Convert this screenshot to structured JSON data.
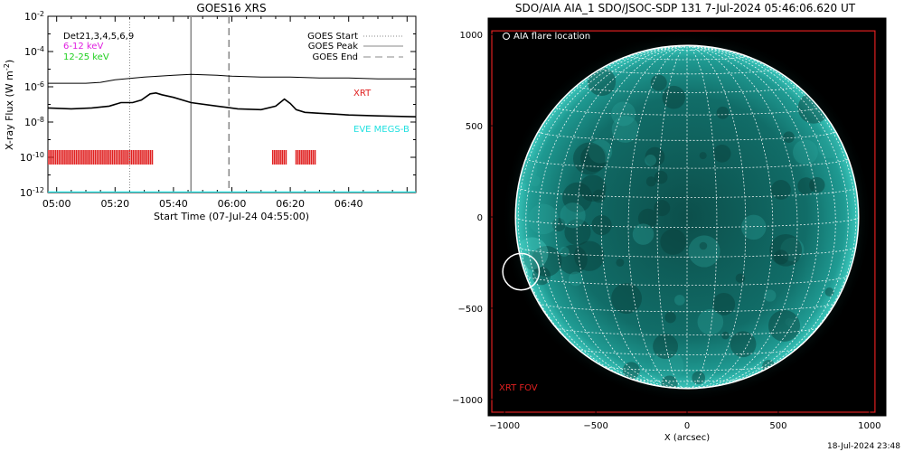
{
  "chart_data": [
    {
      "type": "line",
      "title": "GOES16 XRS",
      "xlabel": "Start Time (07-Jul-24 04:55:00)",
      "ylabel": "X-ray Flux (W m",
      "ylabel_unit_exp": "-2",
      "ylabel_close": ")",
      "y_scale": "log",
      "ylim_exp": [
        -12,
        -2
      ],
      "y_ticks": [
        {
          "base": "10",
          "exp": "-2",
          "value_exp": -2
        },
        {
          "base": "10",
          "exp": "-4",
          "value_exp": -4
        },
        {
          "base": "10",
          "exp": "-6",
          "value_exp": -6
        },
        {
          "base": "10",
          "exp": "-8",
          "value_exp": -8
        },
        {
          "base": "10",
          "exp": "-10",
          "value_exp": -10
        },
        {
          "base": "10",
          "exp": "-12",
          "value_exp": -12
        }
      ],
      "xlim_minutes": [
        -3,
        123
      ],
      "x_ticks": [
        {
          "label": "05:00",
          "minute": 0
        },
        {
          "label": "05:20",
          "minute": 20
        },
        {
          "label": "05:40",
          "minute": 40
        },
        {
          "label": "06:00",
          "minute": 60
        },
        {
          "label": "06:20",
          "minute": 80
        },
        {
          "label": "06:40",
          "minute": 100
        }
      ],
      "detectors_label": "Det21,3,4,5,6,9",
      "energy_labels": [
        {
          "text": "6-12 keV",
          "color": "#e020e0"
        },
        {
          "text": "12-25 keV",
          "color": "#20d020"
        }
      ],
      "legend": [
        {
          "text": "GOES Start",
          "style": "dotted"
        },
        {
          "text": "GOES Peak",
          "style": "solid"
        },
        {
          "text": "GOES End",
          "style": "dashed"
        }
      ],
      "legend_position": "top-right",
      "series_labels": [
        {
          "text": "XRT",
          "color": "#e02020"
        },
        {
          "text": "EVE MEGS-B",
          "color": "#20e0e0"
        }
      ],
      "event_lines_minutes": {
        "start": 25,
        "peak": 46,
        "end": 59
      },
      "series": [
        {
          "name": "upper",
          "color": "#000000",
          "x": [
            -3,
            10,
            15,
            20,
            30,
            40,
            46,
            55,
            60,
            70,
            80,
            90,
            100,
            110,
            123
          ],
          "log_y": [
            -5.8,
            -5.8,
            -5.75,
            -5.6,
            -5.45,
            -5.35,
            -5.3,
            -5.35,
            -5.4,
            -5.45,
            -5.45,
            -5.5,
            -5.5,
            -5.55,
            -5.55
          ]
        },
        {
          "name": "lower",
          "color": "#000000",
          "x": [
            -3,
            5,
            12,
            18,
            22,
            26,
            29,
            32,
            34,
            36,
            40,
            46,
            55,
            62,
            70,
            75,
            78,
            80,
            82,
            85,
            90,
            95,
            100,
            110,
            123
          ],
          "log_y": [
            -7.2,
            -7.25,
            -7.2,
            -7.1,
            -6.9,
            -6.9,
            -6.75,
            -6.4,
            -6.35,
            -6.45,
            -6.6,
            -6.9,
            -7.1,
            -7.25,
            -7.3,
            -7.1,
            -6.7,
            -6.95,
            -7.3,
            -7.45,
            -7.5,
            -7.55,
            -7.6,
            -7.65,
            -7.7
          ]
        },
        {
          "name": "EVE MEGS-B",
          "color": "#20e0e0",
          "x": [
            -3,
            123
          ],
          "log_y": [
            -12,
            -12
          ]
        }
      ],
      "xrt_coverage_minutes": [
        [
          -3,
          33
        ],
        [
          74,
          79
        ],
        [
          82,
          89
        ]
      ]
    },
    {
      "type": "image",
      "title": "SDO/AIA AIA_1 SDO/JSOC-SDP 131  7-Jul-2024 05:46:06.620 UT",
      "xlabel": "X (arcsec)",
      "xlim": [
        -1090,
        1090
      ],
      "ylim": [
        -1090,
        1090
      ],
      "x_ticks": [
        -1000,
        -500,
        0,
        500,
        1000
      ],
      "y_ticks": [
        -1000,
        -500,
        0,
        500,
        1000
      ],
      "x_tick_labels": [
        "−1000",
        "−500",
        "0",
        "500",
        "1000"
      ],
      "y_tick_labels": [
        "−1000",
        "−500",
        "0",
        "500",
        "1000"
      ],
      "solar_radius_arcsec": 940,
      "flare_location_label": "AIA flare location",
      "flare_location_arcsec": [
        -910,
        -300
      ],
      "flare_circle_radius_arcsec": 100,
      "fov_label": "XRT FOV",
      "fov_color": "#e02020",
      "xrt_fov_arcsec": {
        "x": [
          -1070,
          1030
        ],
        "y": [
          -1070,
          1020
        ]
      },
      "grid_color": "#ffffff",
      "disk_color": "#0f6a66"
    }
  ],
  "footer": {
    "timestamp": "18-Jul-2024 23:48"
  }
}
